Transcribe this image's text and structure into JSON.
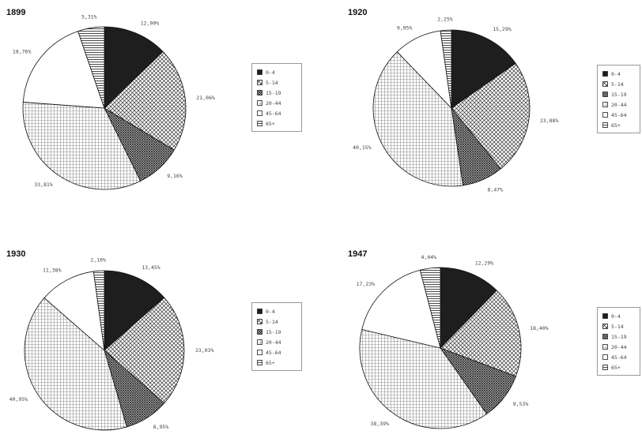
{
  "chart_data": [
    {
      "type": "pie",
      "title": "1899",
      "categories": [
        "0-4",
        "5-14",
        "15-19",
        "20-44",
        "45-64",
        "65+"
      ],
      "values": [
        12.9,
        21.06,
        9.16,
        33.81,
        18.76,
        5.31
      ],
      "labels": [
        "12,90%",
        "21,06%",
        "9,16%",
        "33,81%",
        "18,76%",
        "5,31%"
      ],
      "legend": [
        "0-4",
        "5-14",
        "15-19",
        "20-44",
        "45-64",
        "65+"
      ],
      "legend_position": "right"
    },
    {
      "type": "pie",
      "title": "1920",
      "categories": [
        "0-4",
        "5-14",
        "15-19",
        "20-44",
        "45-64",
        "65+"
      ],
      "values": [
        15.29,
        23.88,
        8.47,
        40.15,
        9.95,
        2.25
      ],
      "labels": [
        "15,29%",
        "23,88%",
        "8,47%",
        "40,15%",
        "9,95%",
        "2,25%"
      ],
      "legend": [
        "0-4",
        "5-14",
        "15-19",
        "20-44",
        "45-64",
        "65+"
      ],
      "legend_position": "right"
    },
    {
      "type": "pie",
      "title": "1930",
      "categories": [
        "0-4",
        "5-14",
        "15-19",
        "20-44",
        "45-64",
        "65+"
      ],
      "values": [
        13.45,
        23.03,
        8.95,
        40.95,
        11.38,
        2.16
      ],
      "labels": [
        "13,45%",
        "23,03%",
        "8,95%",
        "40,95%",
        "11,38%",
        "2,16%"
      ],
      "legend": [
        "0-4",
        "5-14",
        "15-19",
        "20-44",
        "45-64",
        "65+"
      ],
      "legend_position": "right"
    },
    {
      "type": "pie",
      "title": "1947",
      "categories": [
        "0-4",
        "5-14",
        "15-19",
        "20-44",
        "45-64",
        "65+"
      ],
      "values": [
        12.29,
        18.4,
        9.53,
        38.39,
        17.23,
        4.04
      ],
      "labels": [
        "12,29%",
        "18,40%",
        "9,53%",
        "38,39%",
        "17,23%",
        "4,04%"
      ],
      "legend": [
        "0-4",
        "5-14",
        "15-19",
        "20-44",
        "45-64",
        "65+"
      ],
      "legend_position": "right"
    }
  ],
  "colors": {
    "ink": "#333333",
    "solid": "#1e1e1e",
    "background": "#ffffff"
  }
}
